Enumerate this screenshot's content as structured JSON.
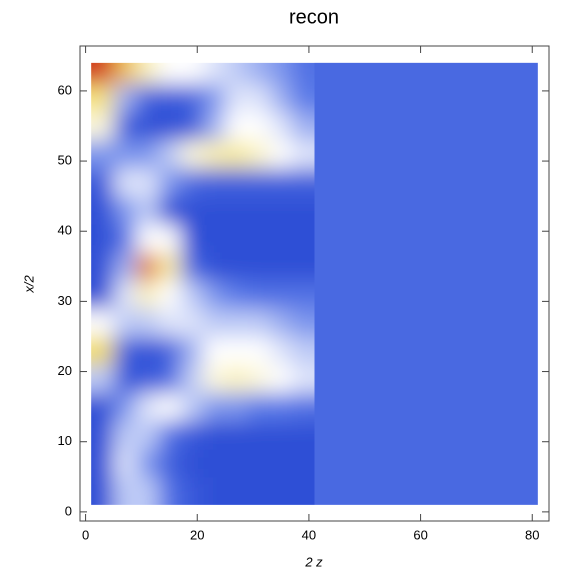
{
  "chart_data": {
    "type": "heatmap",
    "title": "recon",
    "xlabel": "2 z",
    "ylabel": "x/2",
    "xbins": [
      1,
      5,
      9,
      13,
      17,
      21,
      25,
      29,
      33,
      37,
      41
    ],
    "ybins": [
      1,
      5,
      9,
      13,
      17,
      21,
      25,
      29,
      33,
      37,
      41,
      45,
      49,
      53,
      57,
      61,
      64
    ],
    "z": [
      [
        0.0,
        0.4,
        0.4,
        0.2,
        0.05,
        0,
        0,
        0,
        0,
        0
      ],
      [
        0.0,
        0.45,
        0.3,
        0.1,
        0,
        0,
        0,
        0,
        0,
        0
      ],
      [
        0.0,
        0.4,
        0.4,
        0.2,
        0.05,
        0,
        0,
        0,
        0,
        0
      ],
      [
        0.0,
        0.3,
        0.45,
        0.5,
        0.4,
        0.3,
        0.3,
        0.25,
        0.25,
        0.2
      ],
      [
        0.4,
        0.05,
        0.05,
        0.15,
        0.4,
        0.55,
        0.6,
        0.55,
        0.5,
        0.45
      ],
      [
        0.75,
        0.1,
        0.0,
        0.1,
        0.35,
        0.5,
        0.5,
        0.5,
        0.45,
        0.4
      ],
      [
        0.5,
        0.4,
        0.4,
        0.45,
        0.45,
        0.4,
        0.4,
        0.4,
        0.35,
        0.3
      ],
      [
        0.0,
        0.45,
        0.6,
        0.5,
        0.4,
        0.3,
        0.25,
        0.2,
        0.2,
        0.2
      ],
      [
        0.0,
        0.35,
        0.9,
        0.65,
        0.15,
        0,
        0,
        0,
        0,
        0
      ],
      [
        0.0,
        0.2,
        0.5,
        0.5,
        0.0,
        0,
        0,
        0,
        0,
        0
      ],
      [
        0.0,
        0.3,
        0.4,
        0.0,
        0,
        0,
        0,
        0,
        0,
        0
      ],
      [
        0.05,
        0.45,
        0.45,
        0.3,
        0.15,
        0.1,
        0.1,
        0.1,
        0.1,
        0.1
      ],
      [
        0.3,
        0.3,
        0.3,
        0.4,
        0.55,
        0.62,
        0.65,
        0.58,
        0.5,
        0.45
      ],
      [
        0.55,
        0.1,
        0.0,
        0.0,
        0.05,
        0.35,
        0.5,
        0.5,
        0.45,
        0.35
      ],
      [
        0.7,
        0.35,
        0.1,
        0.05,
        0.1,
        0.3,
        0.45,
        0.45,
        0.35,
        0.25
      ],
      [
        1.0,
        0.8,
        0.6,
        0.5,
        0.5,
        0.45,
        0.4,
        0.35,
        0.3,
        0.2
      ]
    ],
    "background_region": {
      "xlim": [
        41,
        81
      ],
      "value": 0.15
    },
    "zlim": [
      0,
      1
    ],
    "colors": [
      "#2f4fd6",
      "#5a7ae8",
      "#ffffff",
      "#f2dc5a",
      "#d23a1e"
    ],
    "xlim": [
      -1,
      83
    ],
    "ylim": [
      -1.3,
      66.4
    ],
    "xticks": [
      0,
      20,
      40,
      60,
      80
    ],
    "yticks": [
      0,
      10,
      20,
      30,
      40,
      50,
      60
    ]
  }
}
